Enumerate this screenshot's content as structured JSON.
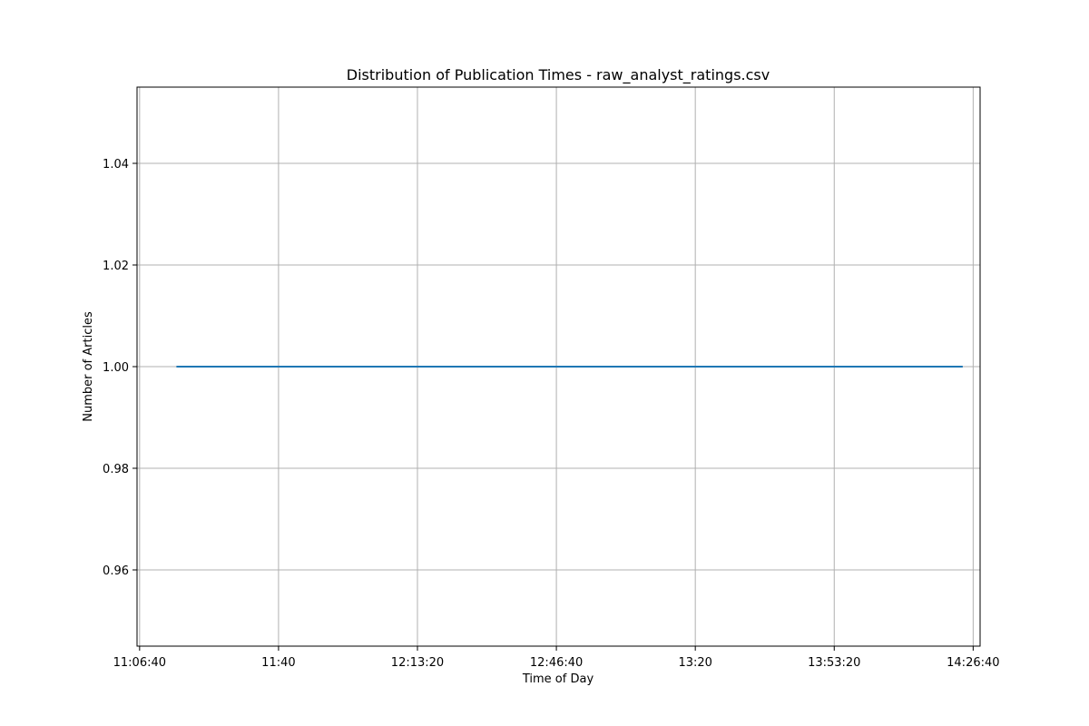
{
  "chart_data": {
    "type": "line",
    "title": "Distribution of Publication Times - raw_analyst_ratings.csv",
    "xlabel": "Time of Day",
    "ylabel": "Number of Articles",
    "x_tick_labels": [
      "11:06:40",
      "11:40",
      "12:13:20",
      "12:46:40",
      "13:20",
      "13:53:20",
      "14:26:40"
    ],
    "y_tick_labels": [
      "0.96",
      "0.98",
      "1.00",
      "1.02",
      "1.04"
    ],
    "y_ticks": [
      0.96,
      0.98,
      1.0,
      1.02,
      1.04
    ],
    "xlim": [
      "11:06:03",
      "14:28:20"
    ],
    "ylim": [
      0.945,
      1.055
    ],
    "grid": true,
    "series": [
      {
        "x": [
          "11:15:30",
          "14:24:10"
        ],
        "values": [
          1.0,
          1.0
        ],
        "color": "#1f77b4"
      }
    ]
  }
}
